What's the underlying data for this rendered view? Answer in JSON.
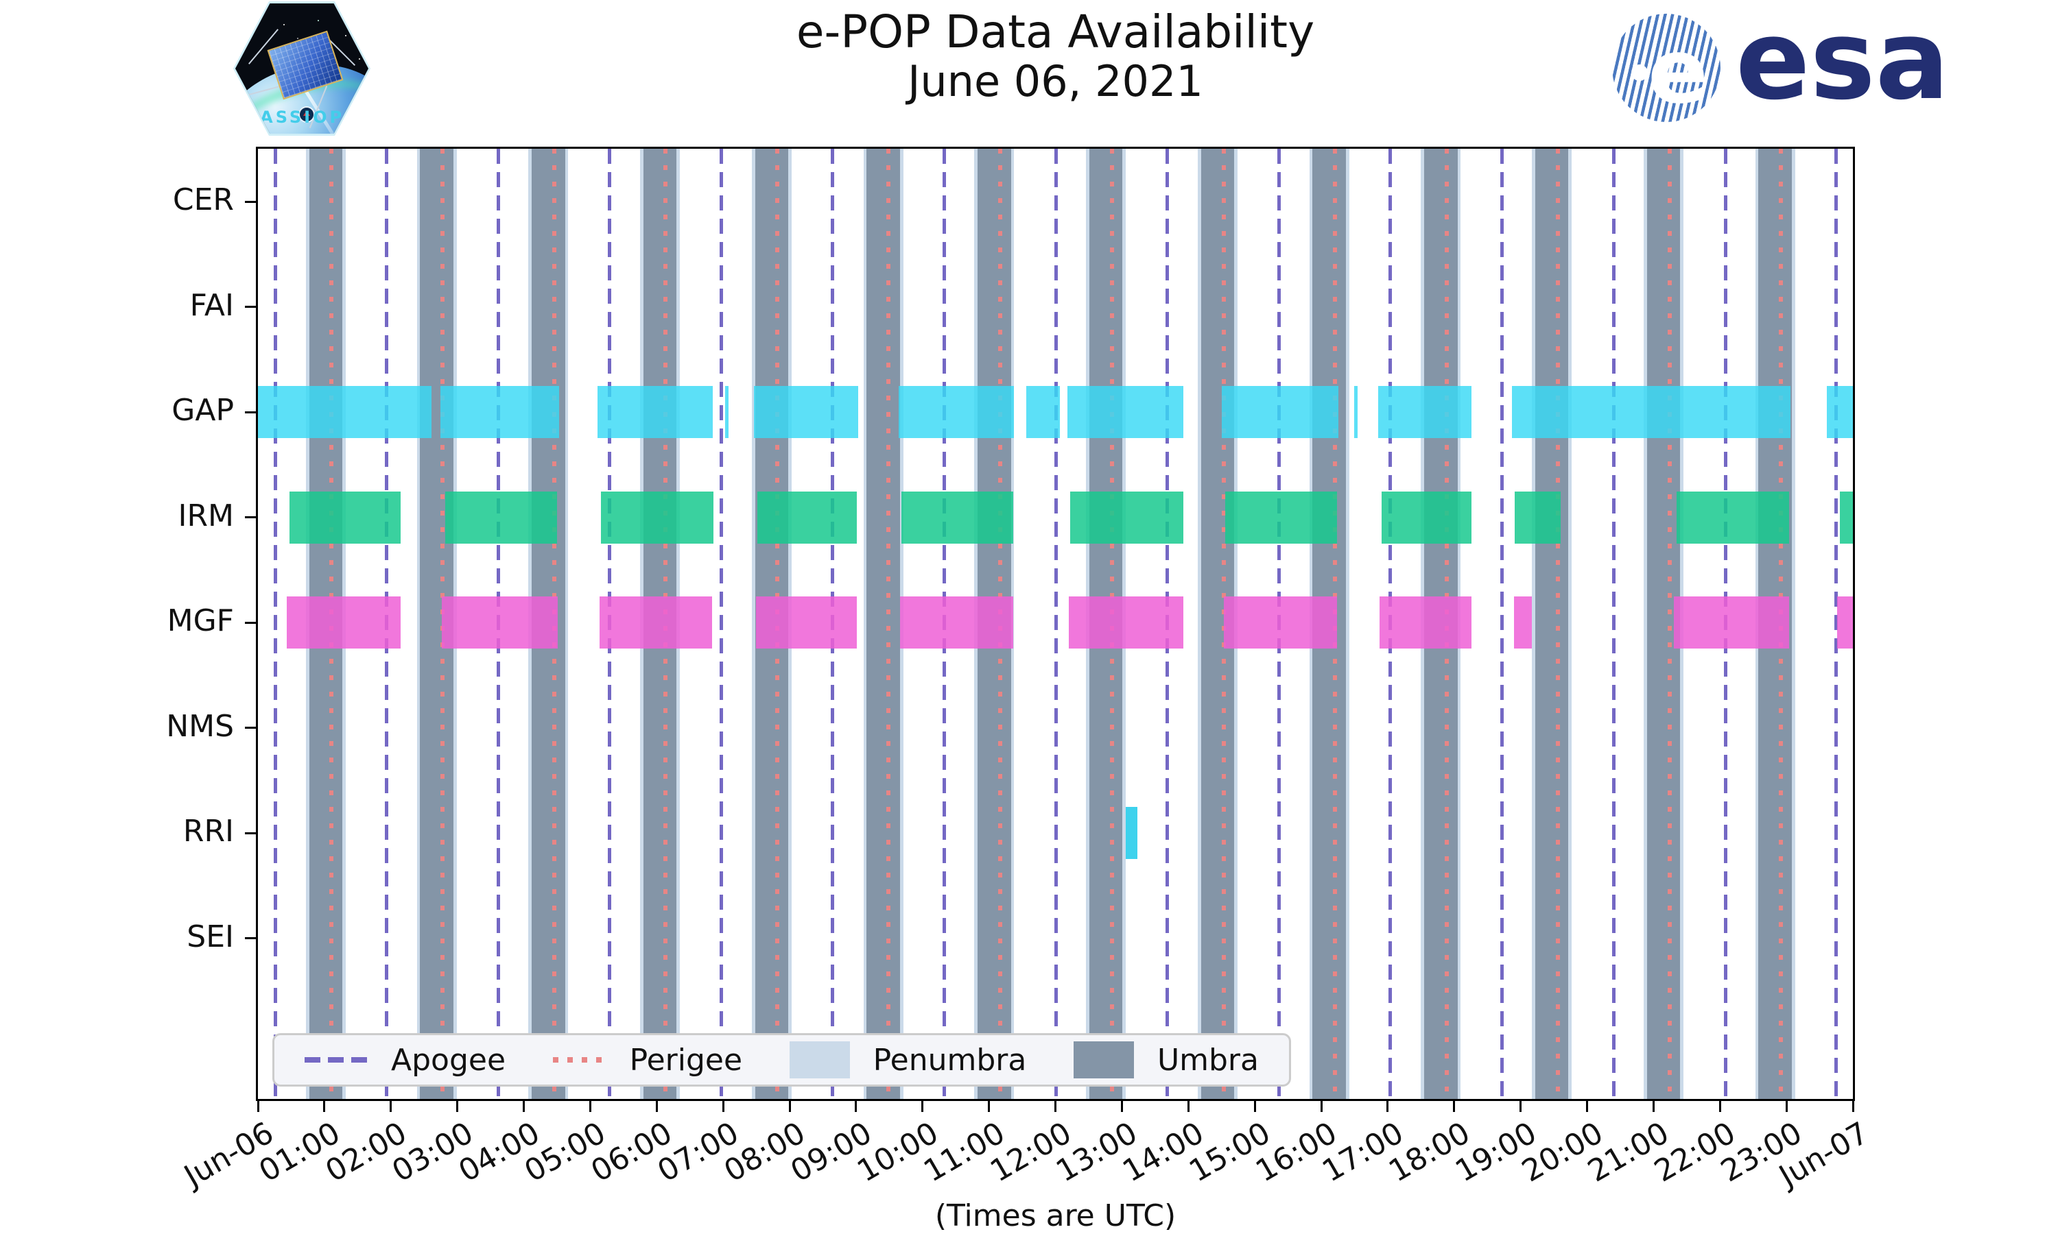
{
  "header": {
    "title_line1": "e-POP Data Availability",
    "title_line2": "June 06, 2021",
    "cassiope_badge_label": "CASSIOPE",
    "esa_wordmark": "esa",
    "esa_e_glyph": "e"
  },
  "chart_data": {
    "type": "bar",
    "subtype": "availability-timeline-broken-barh",
    "title": "e-POP Data Availability",
    "subtitle": "June 06, 2021",
    "xlabel": "(Times are UTC)",
    "ylabel": "",
    "x_axis": {
      "start": "Jun-06 00:00",
      "end": "Jun-07 00:00",
      "hours_range": [
        0,
        24
      ],
      "tick_hours": [
        0,
        1,
        2,
        3,
        4,
        5,
        6,
        7,
        8,
        9,
        10,
        11,
        12,
        13,
        14,
        15,
        16,
        17,
        18,
        19,
        20,
        21,
        22,
        23,
        24
      ],
      "tick_labels": [
        "Jun-06",
        "01:00",
        "02:00",
        "03:00",
        "04:00",
        "05:00",
        "06:00",
        "07:00",
        "08:00",
        "09:00",
        "10:00",
        "11:00",
        "12:00",
        "13:00",
        "14:00",
        "15:00",
        "16:00",
        "17:00",
        "18:00",
        "19:00",
        "20:00",
        "21:00",
        "22:00",
        "23:00",
        "Jun-07"
      ],
      "tick_rotation_deg": 30
    },
    "categories": [
      "CER",
      "FAI",
      "GAP",
      "IRM",
      "MGF",
      "NMS",
      "RRI",
      "SEI"
    ],
    "series": [
      {
        "name": "CER",
        "row": 0,
        "segments_hours": []
      },
      {
        "name": "FAI",
        "row": 1,
        "segments_hours": []
      },
      {
        "name": "GAP",
        "row": 2,
        "color_key": "gap",
        "segments_hours": [
          [
            0.0,
            2.61
          ],
          [
            2.75,
            4.53
          ],
          [
            5.11,
            6.84
          ],
          [
            7.03,
            7.08
          ],
          [
            7.46,
            9.03
          ],
          [
            9.64,
            11.38
          ],
          [
            11.56,
            12.07
          ],
          [
            12.18,
            13.93
          ],
          [
            14.5,
            16.26
          ],
          [
            16.5,
            16.55
          ],
          [
            16.86,
            18.26
          ],
          [
            18.87,
            23.06
          ],
          [
            23.61,
            24.0
          ]
        ]
      },
      {
        "name": "IRM",
        "row": 3,
        "color_key": "irm",
        "segments_hours": [
          [
            0.47,
            2.15
          ],
          [
            2.82,
            4.5
          ],
          [
            5.16,
            6.85
          ],
          [
            7.51,
            9.01
          ],
          [
            9.68,
            11.37
          ],
          [
            12.22,
            13.92
          ],
          [
            14.55,
            16.24
          ],
          [
            16.91,
            18.26
          ],
          [
            18.91,
            19.6
          ],
          [
            21.35,
            23.04
          ],
          [
            23.8,
            24.0
          ]
        ]
      },
      {
        "name": "MGF",
        "row": 4,
        "color_key": "mgf",
        "segments_hours": [
          [
            0.43,
            2.15
          ],
          [
            2.77,
            4.51
          ],
          [
            5.14,
            6.83
          ],
          [
            7.49,
            9.01
          ],
          [
            9.66,
            11.37
          ],
          [
            12.2,
            13.92
          ],
          [
            14.53,
            16.24
          ],
          [
            16.88,
            18.26
          ],
          [
            18.9,
            19.17
          ],
          [
            21.31,
            23.04
          ],
          [
            23.76,
            24.0
          ]
        ]
      },
      {
        "name": "NMS",
        "row": 5,
        "segments_hours": []
      },
      {
        "name": "RRI",
        "row": 6,
        "color_key": "rri",
        "segments_hours": [
          [
            13.06,
            13.23
          ]
        ]
      },
      {
        "name": "SEI",
        "row": 7,
        "segments_hours": []
      }
    ],
    "orbit_events": {
      "apogee_hours": [
        0.26,
        1.94,
        3.62,
        5.29,
        6.97,
        8.65,
        10.33,
        12.01,
        13.68,
        15.36,
        17.04,
        18.72,
        20.4,
        22.08,
        23.75
      ],
      "perigee_hours": [
        1.1,
        2.78,
        4.46,
        6.13,
        7.81,
        9.49,
        11.17,
        12.85,
        14.53,
        16.21,
        17.89,
        19.56,
        21.24,
        22.92
      ],
      "umbra_intervals_hours": [
        [
          0.77,
          1.27
        ],
        [
          2.44,
          2.94
        ],
        [
          4.12,
          4.62
        ],
        [
          5.8,
          6.3
        ],
        [
          7.48,
          7.98
        ],
        [
          9.16,
          9.66
        ],
        [
          10.83,
          11.33
        ],
        [
          12.51,
          13.01
        ],
        [
          14.19,
          14.69
        ],
        [
          15.87,
          16.37
        ],
        [
          17.55,
          18.05
        ],
        [
          19.22,
          19.72
        ],
        [
          20.9,
          21.4
        ],
        [
          22.58,
          23.08
        ]
      ],
      "penumbra_strip_hours": 0.05
    },
    "legend": {
      "position": "lower left inside axes",
      "items": [
        {
          "label": "Apogee",
          "style": "dashed-line"
        },
        {
          "label": "Perigee",
          "style": "dotted-line"
        },
        {
          "label": "Penumbra",
          "style": "patch"
        },
        {
          "label": "Umbra",
          "style": "patch"
        }
      ]
    },
    "colors": {
      "gap": "rgba(56,217,245,0.82)",
      "irm": "rgba(23,201,142,0.85)",
      "mgf": "rgba(238,95,214,0.85)",
      "rri": "rgba(40,205,235,0.9)",
      "umbra": "#8495A7",
      "penumbra": "#CBDAE9",
      "apogee": "#7468C4",
      "perigee": "#E88585",
      "legend_bg": "#F4F5F9",
      "legend_border": "#CCCCCC",
      "axis": "#000000"
    },
    "grid": false
  },
  "footer": {
    "xaxis_caption": "(Times are UTC)"
  }
}
